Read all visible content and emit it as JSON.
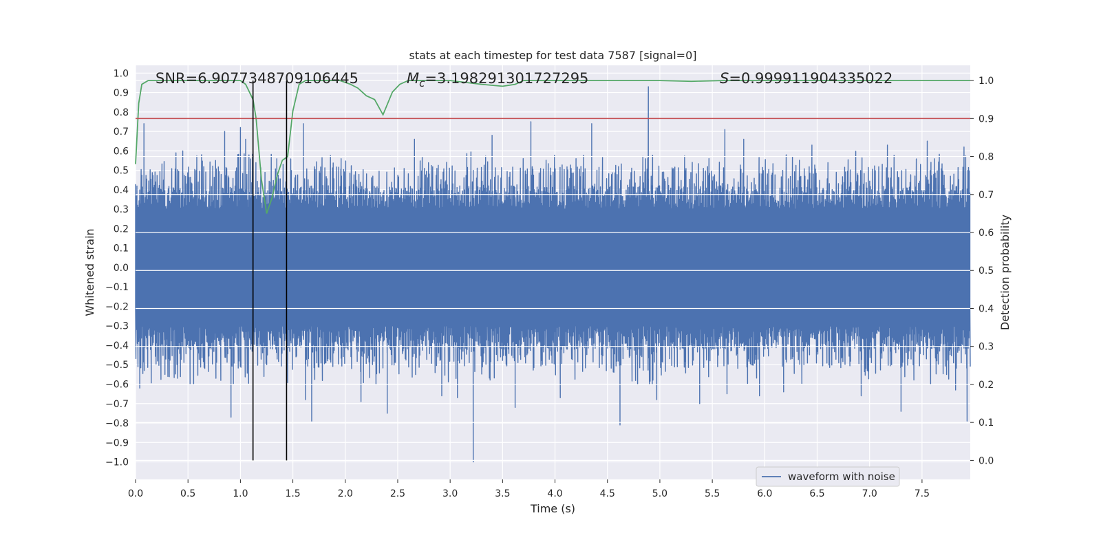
{
  "chart_data": {
    "type": "line",
    "title": "stats at each timestep for test data 7587 [signal=0]",
    "xlabel": "Time (s)",
    "ylabel_left": "Whitened strain",
    "ylabel_right": "Detection probability",
    "xlim": [
      0.0,
      7.96
    ],
    "ylim_left": [
      -1.09,
      1.04
    ],
    "ylim_right": [
      -0.05,
      1.04
    ],
    "grid": true,
    "x_ticks": [
      "0.0",
      "0.5",
      "1.0",
      "1.5",
      "2.0",
      "2.5",
      "3.0",
      "3.5",
      "4.0",
      "4.5",
      "5.0",
      "5.5",
      "6.0",
      "6.5",
      "7.0",
      "7.5"
    ],
    "x_tick_values": [
      0.0,
      0.5,
      1.0,
      1.5,
      2.0,
      2.5,
      3.0,
      3.5,
      4.0,
      4.5,
      5.0,
      5.5,
      6.0,
      6.5,
      7.0,
      7.5
    ],
    "left_ticks": [
      "1.0",
      "0.9",
      "0.8",
      "0.7",
      "0.6",
      "0.5",
      "0.4",
      "0.3",
      "0.2",
      "0.1",
      "0.0",
      "−0.1",
      "−0.2",
      "−0.3",
      "−0.4",
      "−0.5",
      "−0.6",
      "−0.7",
      "−0.8",
      "−0.9",
      "−1.0"
    ],
    "left_tick_values": [
      1.0,
      0.9,
      0.8,
      0.7,
      0.6,
      0.5,
      0.4,
      0.3,
      0.2,
      0.1,
      0.0,
      -0.1,
      -0.2,
      -0.3,
      -0.4,
      -0.5,
      -0.6,
      -0.7,
      -0.8,
      -0.9,
      -1.0
    ],
    "right_ticks": [
      "1.0",
      "0.9",
      "0.8",
      "0.7",
      "0.6",
      "0.5",
      "0.4",
      "0.3",
      "0.2",
      "0.1",
      "0.0"
    ],
    "right_tick_values": [
      1.0,
      0.9,
      0.8,
      0.7,
      0.6,
      0.5,
      0.4,
      0.3,
      0.2,
      0.1,
      0.0
    ],
    "annotations": {
      "snr": "SNR=6.9077348709106445",
      "mc_symbol": "M",
      "mc_sub": "c",
      "mc_value": "=3.198291301727295",
      "s_symbol": "S",
      "s_value": "=0.999911904335022"
    },
    "legend": {
      "label": "waveform with noise",
      "placement": "lower-right"
    },
    "threshold": {
      "value": 0.9,
      "axis": "right",
      "color": "#c44e52"
    },
    "vlines": [
      1.12,
      1.44
    ],
    "vline_color": "#000000",
    "waveform": {
      "name": "waveform with noise",
      "color": "#4c72b0",
      "core_abs": 0.3,
      "max_peak": 0.93,
      "max_peak_t": 4.89,
      "min_peak": -1.0,
      "min_peak_t": 3.22,
      "spikes": [
        [
          0.04,
          -0.62
        ],
        [
          0.08,
          0.74
        ],
        [
          0.28,
          -0.55
        ],
        [
          0.45,
          0.6
        ],
        [
          0.52,
          -0.6
        ],
        [
          0.63,
          0.58
        ],
        [
          0.85,
          0.7
        ],
        [
          0.91,
          -0.77
        ],
        [
          1.0,
          0.72
        ],
        [
          1.05,
          0.66
        ],
        [
          1.6,
          0.74
        ],
        [
          1.62,
          -0.68
        ],
        [
          1.68,
          -0.79
        ],
        [
          1.96,
          0.56
        ],
        [
          2.15,
          -0.69
        ],
        [
          2.4,
          -0.75
        ],
        [
          2.66,
          0.66
        ],
        [
          2.92,
          -0.66
        ],
        [
          3.07,
          -0.67
        ],
        [
          3.4,
          0.68
        ],
        [
          3.62,
          -0.72
        ],
        [
          3.77,
          0.75
        ],
        [
          4.05,
          -0.67
        ],
        [
          4.35,
          0.74
        ],
        [
          4.62,
          -0.81
        ],
        [
          4.9,
          -0.6
        ],
        [
          4.97,
          -0.68
        ],
        [
          5.38,
          -0.7
        ],
        [
          5.62,
          0.71
        ],
        [
          5.64,
          -0.65
        ],
        [
          5.8,
          0.66
        ],
        [
          5.95,
          -0.66
        ],
        [
          6.18,
          -0.64
        ],
        [
          6.45,
          0.63
        ],
        [
          6.92,
          -0.66
        ],
        [
          7.17,
          0.63
        ],
        [
          7.3,
          -0.74
        ],
        [
          7.55,
          0.65
        ],
        [
          7.82,
          -0.63
        ],
        [
          7.9,
          0.62
        ],
        [
          7.93,
          -0.79
        ]
      ]
    },
    "probability": {
      "name": "Detection probability",
      "color": "#55a868",
      "points": [
        [
          0.0,
          0.78
        ],
        [
          0.03,
          0.94
        ],
        [
          0.06,
          0.99
        ],
        [
          0.12,
          1.0
        ],
        [
          0.5,
          1.0
        ],
        [
          0.9,
          1.0
        ],
        [
          1.0,
          1.0
        ],
        [
          1.05,
          0.99
        ],
        [
          1.12,
          0.95
        ],
        [
          1.15,
          0.9
        ],
        [
          1.2,
          0.74
        ],
        [
          1.25,
          0.65
        ],
        [
          1.3,
          0.69
        ],
        [
          1.35,
          0.75
        ],
        [
          1.4,
          0.79
        ],
        [
          1.45,
          0.8
        ],
        [
          1.5,
          0.92
        ],
        [
          1.56,
          0.99
        ],
        [
          1.62,
          1.0
        ],
        [
          1.95,
          1.0
        ],
        [
          2.05,
          0.99
        ],
        [
          2.12,
          0.98
        ],
        [
          2.2,
          0.96
        ],
        [
          2.28,
          0.95
        ],
        [
          2.36,
          0.91
        ],
        [
          2.45,
          0.97
        ],
        [
          2.52,
          0.99
        ],
        [
          2.6,
          1.0
        ],
        [
          3.0,
          1.0
        ],
        [
          3.15,
          0.995
        ],
        [
          3.3,
          0.99
        ],
        [
          3.5,
          0.985
        ],
        [
          3.62,
          0.99
        ],
        [
          3.7,
          1.0
        ],
        [
          4.5,
          1.0
        ],
        [
          5.0,
          1.0
        ],
        [
          5.3,
          0.998
        ],
        [
          5.6,
          1.0
        ],
        [
          7.0,
          1.0
        ],
        [
          7.96,
          1.0
        ]
      ]
    }
  }
}
